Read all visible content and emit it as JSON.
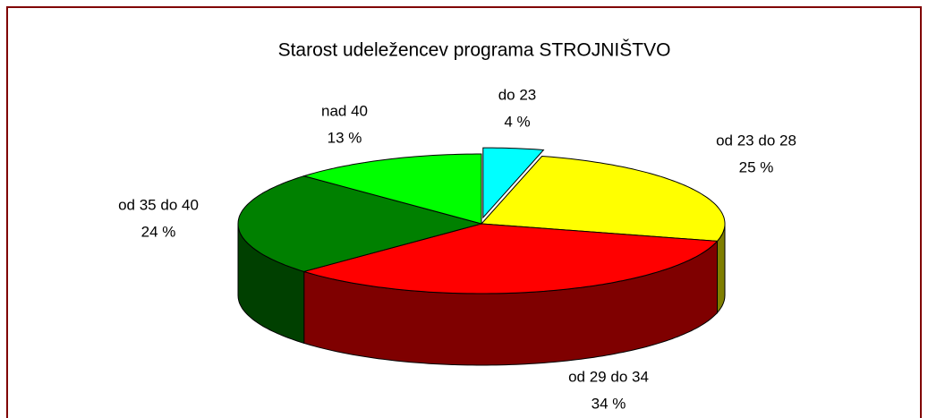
{
  "chart_data": {
    "type": "pie3d",
    "title": "Starost udeležencev programa STROJNIŠTVO",
    "categories": [
      "do 23",
      "od 23 do 28",
      "od 29 do 34",
      "od 35 do 40",
      "nad 40"
    ],
    "values": [
      4,
      25,
      34,
      24,
      13
    ],
    "value_labels": [
      "4 %",
      "25 %",
      "34 %",
      "24 %",
      "13 %"
    ],
    "colors": [
      "#00ffff",
      "#ffff00",
      "#ff0000",
      "#008000",
      "#00ff00"
    ]
  }
}
